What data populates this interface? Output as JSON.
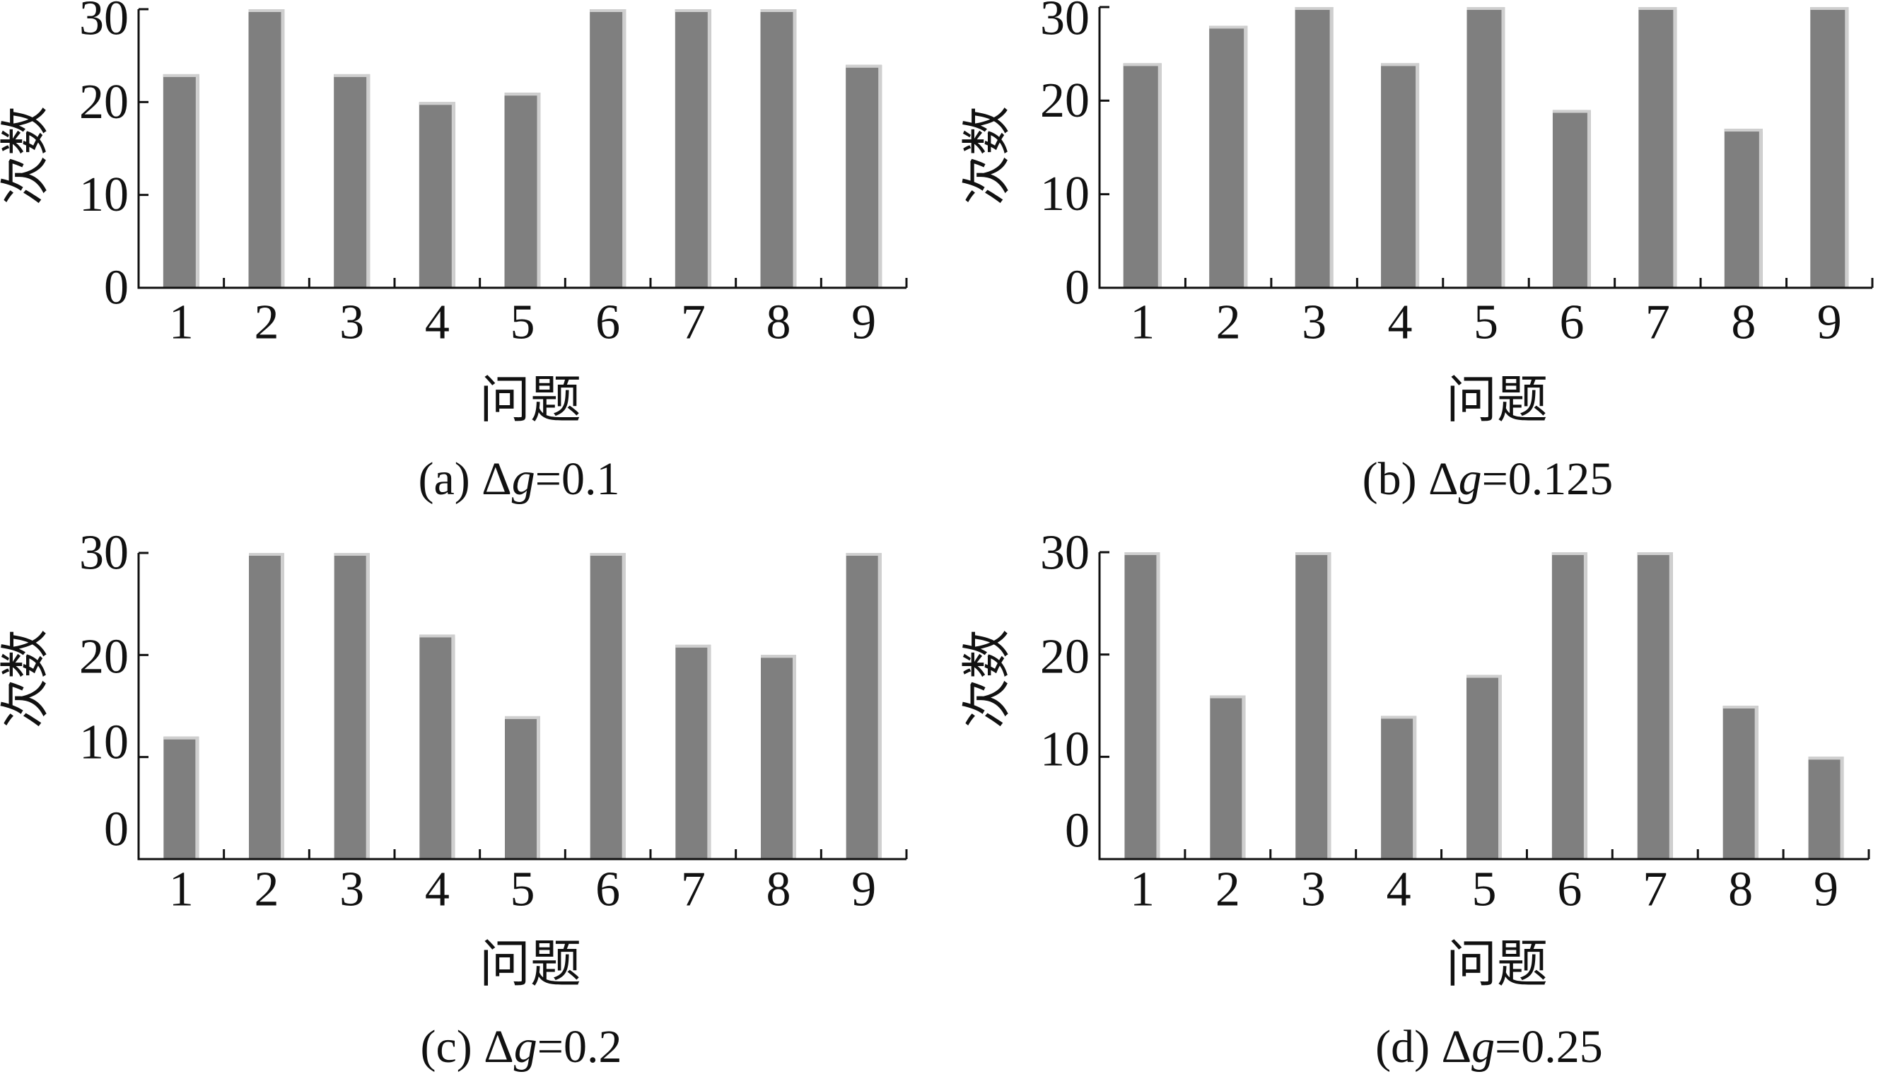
{
  "chart_data": [
    {
      "type": "bar",
      "caption_prefix": "(a) Δ",
      "caption_var": "g",
      "caption_suffix": "=0.1",
      "xlabel": "问题",
      "ylabel": "次数",
      "categories": [
        "1",
        "2",
        "3",
        "4",
        "5",
        "6",
        "7",
        "8",
        "9"
      ],
      "values": [
        23,
        30,
        23,
        20,
        21,
        30,
        30,
        30,
        24
      ],
      "ylim": [
        0,
        30
      ],
      "yticks": [
        0,
        10,
        20,
        30
      ],
      "grid": false,
      "bar_color": "#7f7f7f",
      "bar_edge_color": "#cfcfcf"
    },
    {
      "type": "bar",
      "caption_prefix": "(b) Δ",
      "caption_var": "g",
      "caption_suffix": "=0.125",
      "xlabel": "问题",
      "ylabel": "次数",
      "categories": [
        "1",
        "2",
        "3",
        "4",
        "5",
        "6",
        "7",
        "8",
        "9"
      ],
      "values": [
        24,
        28,
        30,
        24,
        30,
        19,
        30,
        17,
        30
      ],
      "ylim": [
        0,
        30
      ],
      "yticks": [
        0,
        10,
        20,
        30
      ],
      "grid": false,
      "bar_color": "#7f7f7f",
      "bar_edge_color": "#cfcfcf"
    },
    {
      "type": "bar",
      "caption_prefix": "(c) Δ",
      "caption_var": "g",
      "caption_suffix": "=0.2",
      "xlabel": "问题",
      "ylabel": "次数",
      "categories": [
        "1",
        "2",
        "3",
        "4",
        "5",
        "6",
        "7",
        "8",
        "9"
      ],
      "values": [
        12,
        30,
        30,
        22,
        14,
        30,
        21,
        20,
        30
      ],
      "ylim": [
        0,
        30
      ],
      "yticks": [
        0,
        10,
        20,
        30
      ],
      "grid": false,
      "bar_color": "#7f7f7f",
      "bar_edge_color": "#cfcfcf"
    },
    {
      "type": "bar",
      "caption_prefix": "(d) Δ",
      "caption_var": "g",
      "caption_suffix": "=0.25",
      "xlabel": "问题",
      "ylabel": "次数",
      "categories": [
        "1",
        "2",
        "3",
        "4",
        "5",
        "6",
        "7",
        "8",
        "9"
      ],
      "values": [
        30,
        16,
        30,
        14,
        18,
        30,
        30,
        15,
        10
      ],
      "ylim": [
        0,
        30
      ],
      "yticks": [
        0,
        10,
        20,
        30
      ],
      "grid": false,
      "bar_color": "#7f7f7f",
      "bar_edge_color": "#cfcfcf"
    }
  ]
}
